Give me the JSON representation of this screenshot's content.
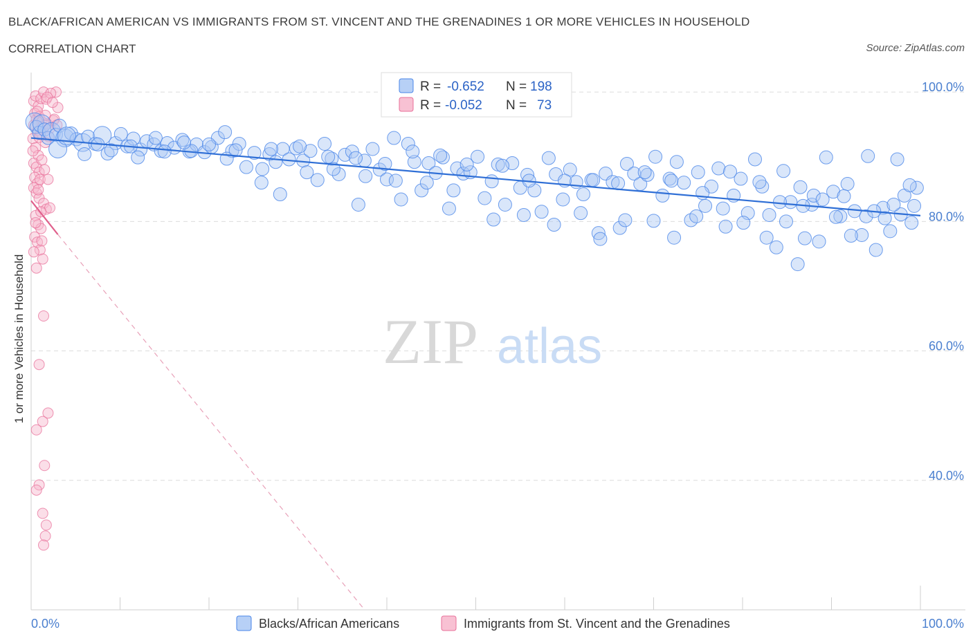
{
  "header": {
    "title": "BLACK/AFRICAN AMERICAN VS IMMIGRANTS FROM ST. VINCENT AND THE GRENADINES 1 OR MORE VEHICLES IN HOUSEHOLD",
    "subtitle": "CORRELATION CHART",
    "source": "Source: ZipAtlas.com"
  },
  "watermark": {
    "zip": "ZIP",
    "atlas": "atlas"
  },
  "legend_box": {
    "rows": [
      {
        "r_label": "R =",
        "r_value": "-0.652",
        "n_label": "N =",
        "n_value": "198"
      },
      {
        "r_label": "R =",
        "r_value": "-0.052",
        "n_label": "N =",
        "n_value": "73"
      }
    ]
  },
  "colors": {
    "blue": "#4a86e8",
    "blue_fill": "#aac8f5",
    "pink": "#e8709a",
    "pink_fill": "#f7b6cb",
    "grid": "#dcdcdc",
    "tick_text": "#4a7fcf"
  },
  "chart_data": {
    "type": "scatter",
    "title": "BLACK/AFRICAN AMERICAN VS IMMIGRANTS FROM ST. VINCENT AND THE GRENADINES 1 OR MORE VEHICLES IN HOUSEHOLD",
    "xlabel": "",
    "ylabel": "1 or more Vehicles in Household",
    "xlim": [
      0,
      100
    ],
    "ylim": [
      20,
      103
    ],
    "x_tick_labels": [
      "0.0%",
      "100.0%"
    ],
    "y_ticks": [
      40,
      60,
      80,
      100
    ],
    "y_tick_labels": [
      "40.0%",
      "60.0%",
      "80.0%",
      "100.0%"
    ],
    "grid": true,
    "legend_position": "bottom",
    "series": [
      {
        "name": "Blacks/African Americans",
        "color": "#4a86e8",
        "r": -0.652,
        "n": 198,
        "trend": {
          "x": [
            0,
            100
          ],
          "y": [
            92.9,
            80.9
          ]
        },
        "points": [
          [
            0.4,
            95.4
          ],
          [
            0.6,
            94.6
          ],
          [
            0.9,
            93.7
          ],
          [
            1.2,
            95.1
          ],
          [
            1.5,
            94.2
          ],
          [
            1.9,
            92.9
          ],
          [
            2.3,
            93.9
          ],
          [
            2.8,
            93.4
          ],
          [
            3.2,
            94.8
          ],
          [
            3.8,
            92.9
          ],
          [
            4.5,
            93.6
          ],
          [
            5.1,
            92.7
          ],
          [
            5.8,
            92.2
          ],
          [
            6.4,
            93.1
          ],
          [
            7.2,
            92.0
          ],
          [
            8.0,
            93.3
          ],
          [
            8.6,
            90.5
          ],
          [
            9.5,
            92.1
          ],
          [
            10.1,
            93.5
          ],
          [
            10.8,
            91.6
          ],
          [
            11.5,
            92.8
          ],
          [
            12.3,
            91.1
          ],
          [
            13.0,
            92.4
          ],
          [
            13.8,
            91.9
          ],
          [
            14.6,
            90.9
          ],
          [
            15.3,
            92.1
          ],
          [
            16.1,
            91.4
          ],
          [
            17.0,
            92.6
          ],
          [
            17.8,
            90.8
          ],
          [
            18.6,
            91.9
          ],
          [
            19.5,
            90.7
          ],
          [
            20.3,
            91.5
          ],
          [
            21.0,
            92.9
          ],
          [
            21.8,
            93.8
          ],
          [
            22.6,
            90.9
          ],
          [
            23.4,
            92.0
          ],
          [
            24.2,
            88.4
          ],
          [
            25.1,
            90.6
          ],
          [
            25.9,
            86.0
          ],
          [
            26.8,
            90.4
          ],
          [
            27.5,
            89.2
          ],
          [
            28.3,
            91.2
          ],
          [
            29.0,
            89.6
          ],
          [
            29.8,
            91.3
          ],
          [
            30.6,
            89.4
          ],
          [
            31.4,
            90.9
          ],
          [
            32.2,
            86.4
          ],
          [
            33.0,
            92.0
          ],
          [
            33.8,
            89.7
          ],
          [
            34.6,
            87.3
          ],
          [
            35.3,
            90.3
          ],
          [
            36.1,
            90.8
          ],
          [
            36.8,
            82.6
          ],
          [
            37.6,
            87.0
          ],
          [
            38.4,
            91.2
          ],
          [
            39.2,
            88.0
          ],
          [
            40.0,
            86.5
          ],
          [
            40.8,
            92.9
          ],
          [
            41.6,
            83.4
          ],
          [
            42.4,
            92.0
          ],
          [
            43.1,
            89.2
          ],
          [
            43.9,
            84.8
          ],
          [
            44.7,
            89.0
          ],
          [
            45.5,
            87.5
          ],
          [
            46.3,
            89.9
          ],
          [
            47.0,
            82.0
          ],
          [
            47.9,
            88.2
          ],
          [
            48.6,
            87.4
          ],
          [
            49.4,
            87.6
          ],
          [
            50.2,
            90.0
          ],
          [
            51.0,
            83.6
          ],
          [
            51.8,
            86.2
          ],
          [
            52.5,
            88.8
          ],
          [
            53.3,
            82.6
          ],
          [
            54.1,
            89.0
          ],
          [
            55.0,
            85.2
          ],
          [
            55.8,
            87.2
          ],
          [
            56.6,
            84.8
          ],
          [
            57.4,
            81.5
          ],
          [
            58.2,
            89.8
          ],
          [
            59.0,
            87.3
          ],
          [
            59.8,
            83.4
          ],
          [
            60.6,
            88.0
          ],
          [
            61.3,
            86.1
          ],
          [
            62.1,
            84.2
          ],
          [
            63.0,
            86.4
          ],
          [
            63.8,
            78.2
          ],
          [
            64.6,
            87.4
          ],
          [
            65.4,
            86.1
          ],
          [
            66.2,
            79.0
          ],
          [
            67.0,
            88.9
          ],
          [
            67.8,
            87.4
          ],
          [
            68.5,
            85.8
          ],
          [
            69.3,
            87.2
          ],
          [
            70.2,
            90.0
          ],
          [
            71.0,
            84.0
          ],
          [
            71.8,
            86.6
          ],
          [
            72.6,
            89.2
          ],
          [
            73.4,
            86.0
          ],
          [
            74.2,
            80.2
          ],
          [
            75.0,
            87.6
          ],
          [
            75.8,
            82.4
          ],
          [
            76.5,
            85.4
          ],
          [
            77.3,
            88.2
          ],
          [
            78.1,
            79.2
          ],
          [
            79.0,
            84.0
          ],
          [
            79.8,
            86.6
          ],
          [
            80.6,
            81.3
          ],
          [
            81.4,
            89.6
          ],
          [
            82.2,
            85.4
          ],
          [
            83.0,
            81.0
          ],
          [
            83.8,
            76.0
          ],
          [
            84.6,
            87.8
          ],
          [
            85.4,
            83.0
          ],
          [
            86.2,
            73.4
          ],
          [
            87.0,
            77.4
          ],
          [
            87.8,
            82.6
          ],
          [
            88.6,
            76.9
          ],
          [
            89.4,
            89.9
          ],
          [
            90.2,
            84.6
          ],
          [
            91.0,
            80.8
          ],
          [
            91.8,
            85.8
          ],
          [
            92.6,
            81.6
          ],
          [
            93.4,
            77.9
          ],
          [
            94.1,
            90.1
          ],
          [
            95.0,
            75.6
          ],
          [
            95.8,
            82.1
          ],
          [
            96.6,
            78.5
          ],
          [
            97.4,
            89.6
          ],
          [
            98.2,
            84.0
          ],
          [
            99.0,
            79.8
          ],
          [
            99.6,
            85.2
          ],
          [
            3.0,
            91.2
          ],
          [
            6.0,
            90.4
          ],
          [
            9.0,
            91.0
          ],
          [
            12.0,
            89.9
          ],
          [
            15.0,
            90.8
          ],
          [
            18.0,
            90.9
          ],
          [
            22.0,
            89.7
          ],
          [
            26.0,
            88.1
          ],
          [
            28.0,
            84.2
          ],
          [
            31.0,
            87.6
          ],
          [
            34.0,
            88.1
          ],
          [
            37.5,
            89.4
          ],
          [
            41.0,
            86.3
          ],
          [
            44.5,
            86.0
          ],
          [
            47.5,
            84.8
          ],
          [
            52.0,
            80.3
          ],
          [
            55.4,
            81.0
          ],
          [
            58.8,
            79.5
          ],
          [
            61.8,
            81.3
          ],
          [
            64.0,
            77.3
          ],
          [
            66.8,
            80.2
          ],
          [
            70.0,
            80.1
          ],
          [
            72.3,
            77.5
          ],
          [
            74.8,
            80.8
          ],
          [
            77.8,
            82.0
          ],
          [
            80.1,
            79.8
          ],
          [
            82.7,
            77.5
          ],
          [
            84.9,
            80.0
          ],
          [
            86.8,
            82.4
          ],
          [
            88.0,
            84.0
          ],
          [
            90.5,
            80.7
          ],
          [
            92.2,
            77.8
          ],
          [
            93.9,
            80.8
          ],
          [
            96.0,
            80.5
          ],
          [
            97.8,
            81.1
          ],
          [
            98.8,
            85.6
          ],
          [
            4.0,
            93.2
          ],
          [
            7.5,
            91.9
          ],
          [
            11.2,
            91.6
          ],
          [
            14.0,
            92.9
          ],
          [
            17.2,
            92.2
          ],
          [
            20.0,
            91.9
          ],
          [
            23.0,
            91.0
          ],
          [
            27.0,
            91.2
          ],
          [
            30.2,
            91.6
          ],
          [
            33.4,
            90.0
          ],
          [
            36.5,
            89.8
          ],
          [
            39.8,
            88.9
          ],
          [
            42.9,
            90.8
          ],
          [
            46.0,
            90.2
          ],
          [
            49.0,
            88.8
          ],
          [
            53.0,
            88.6
          ],
          [
            56.0,
            86.3
          ],
          [
            60.0,
            86.3
          ],
          [
            63.2,
            86.4
          ],
          [
            66.0,
            85.9
          ],
          [
            69.0,
            87.6
          ],
          [
            72.0,
            86.3
          ],
          [
            75.5,
            84.4
          ],
          [
            78.6,
            87.7
          ],
          [
            81.9,
            86.1
          ],
          [
            84.2,
            83.0
          ],
          [
            86.5,
            85.3
          ],
          [
            89.0,
            83.4
          ],
          [
            91.4,
            83.9
          ],
          [
            94.8,
            81.6
          ],
          [
            97.0,
            82.6
          ],
          [
            99.3,
            82.4
          ]
        ]
      },
      {
        "name": "Immigrants from St. Vincent and the Grenadines",
        "color": "#e8709a",
        "r": -0.052,
        "n": 73,
        "trend": {
          "x": [
            0,
            3.0
          ],
          "y": [
            83.2,
            78.0
          ]
        },
        "trend_dashed": {
          "x": [
            3.0,
            37.5
          ],
          "y": [
            78.0,
            20.0
          ]
        },
        "points": [
          [
            0.3,
            98.6
          ],
          [
            0.5,
            99.4
          ],
          [
            0.8,
            97.8
          ],
          [
            1.1,
            99.0
          ],
          [
            1.4,
            100.0
          ],
          [
            1.7,
            98.9
          ],
          [
            0.4,
            96.7
          ],
          [
            0.6,
            95.8
          ],
          [
            0.9,
            96.2
          ],
          [
            1.2,
            95.4
          ],
          [
            0.3,
            94.9
          ],
          [
            0.7,
            94.0
          ],
          [
            1.0,
            93.4
          ],
          [
            1.3,
            94.6
          ],
          [
            1.8,
            95.1
          ],
          [
            2.1,
            94.4
          ],
          [
            2.5,
            95.6
          ],
          [
            0.2,
            92.8
          ],
          [
            0.5,
            91.4
          ],
          [
            0.8,
            90.2
          ],
          [
            0.3,
            89.0
          ],
          [
            0.6,
            88.4
          ],
          [
            0.9,
            87.6
          ],
          [
            1.2,
            89.5
          ],
          [
            0.4,
            86.8
          ],
          [
            0.7,
            85.9
          ],
          [
            1.0,
            86.5
          ],
          [
            0.3,
            85.2
          ],
          [
            0.6,
            84.4
          ],
          [
            0.9,
            83.6
          ],
          [
            1.4,
            82.8
          ],
          [
            1.7,
            81.9
          ],
          [
            0.5,
            80.9
          ],
          [
            0.8,
            79.5
          ],
          [
            1.1,
            78.9
          ],
          [
            0.4,
            77.6
          ],
          [
            0.7,
            76.8
          ],
          [
            1.0,
            75.6
          ],
          [
            1.3,
            74.2
          ],
          [
            0.6,
            72.8
          ],
          [
            1.4,
            65.4
          ],
          [
            0.9,
            57.9
          ],
          [
            1.9,
            50.4
          ],
          [
            1.3,
            49.1
          ],
          [
            0.6,
            47.8
          ],
          [
            1.5,
            42.3
          ],
          [
            0.9,
            39.3
          ],
          [
            0.6,
            38.5
          ],
          [
            1.3,
            34.9
          ],
          [
            1.7,
            33.1
          ],
          [
            1.6,
            31.4
          ],
          [
            1.4,
            30.0
          ],
          [
            2.8,
            100.0
          ],
          [
            2.2,
            99.8
          ],
          [
            3.0,
            97.6
          ],
          [
            2.6,
            95.8
          ],
          [
            2.0,
            93.1
          ],
          [
            1.6,
            92.2
          ],
          [
            0.2,
            90.9
          ],
          [
            1.5,
            88.0
          ],
          [
            1.9,
            86.5
          ],
          [
            0.8,
            84.9
          ],
          [
            2.1,
            82.1
          ],
          [
            1.1,
            81.5
          ],
          [
            0.5,
            79.8
          ],
          [
            1.2,
            77.0
          ],
          [
            0.3,
            75.3
          ],
          [
            1.8,
            99.2
          ],
          [
            2.4,
            98.4
          ],
          [
            0.7,
            97.0
          ],
          [
            1.6,
            96.4
          ],
          [
            2.9,
            94.9
          ],
          [
            0.9,
            93.0
          ]
        ]
      }
    ]
  },
  "bottom_legend": {
    "items": [
      {
        "label": "Blacks/African Americans"
      },
      {
        "label": "Immigrants from St. Vincent and the Grenadines"
      }
    ]
  }
}
